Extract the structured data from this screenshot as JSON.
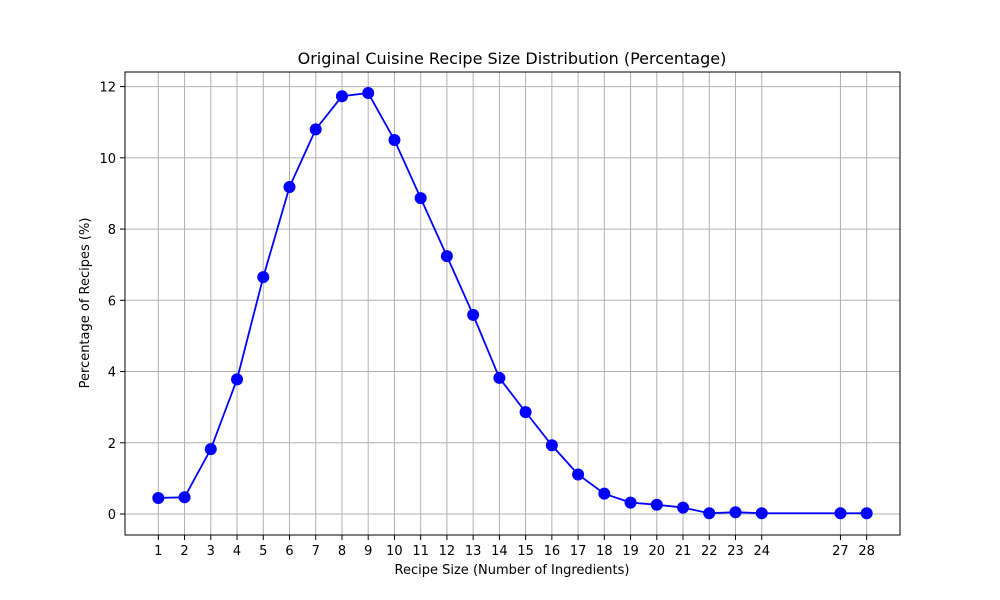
{
  "chart_data": {
    "type": "line",
    "title": "Original Cuisine Recipe Size Distribution (Percentage)",
    "xlabel": "Recipe Size (Number of Ingredients)",
    "ylabel": "Percentage of Recipes (%)",
    "x": [
      1,
      2,
      3,
      4,
      5,
      6,
      7,
      8,
      9,
      10,
      11,
      12,
      13,
      14,
      15,
      16,
      17,
      18,
      19,
      20,
      21,
      22,
      23,
      24,
      27,
      28
    ],
    "series": [
      {
        "values": [
          0.45,
          0.47,
          1.82,
          3.78,
          6.65,
          9.18,
          10.8,
          11.73,
          11.82,
          10.5,
          8.87,
          7.24,
          5.59,
          3.82,
          2.86,
          1.93,
          1.11,
          0.57,
          0.32,
          0.26,
          0.18,
          0.02,
          0.05,
          0.02,
          0.02,
          0.02
        ],
        "color": "#0000ff"
      }
    ],
    "xticks": [
      "1",
      "2",
      "3",
      "4",
      "5",
      "6",
      "7",
      "8",
      "9",
      "10",
      "11",
      "12",
      "13",
      "14",
      "15",
      "16",
      "17",
      "18",
      "19",
      "20",
      "21",
      "22",
      "23",
      "24",
      "27",
      "28"
    ],
    "yticks": [
      "0",
      "2",
      "4",
      "6",
      "8",
      "10",
      "12"
    ],
    "xlim": [
      -0.27,
      29.27
    ],
    "ylim": [
      -0.59,
      12.41
    ],
    "grid": true,
    "grid_color": "#b0b0b0",
    "marker": "circle"
  }
}
